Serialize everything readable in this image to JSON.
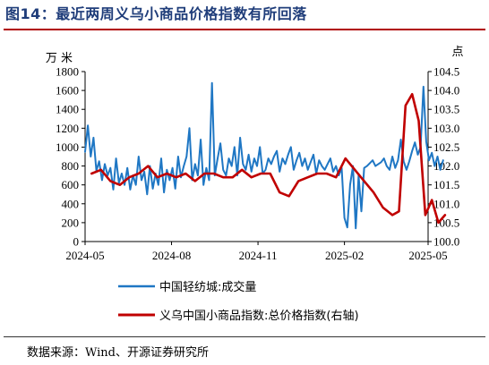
{
  "figure": {
    "title": "图14：最近两周义乌小商品价格指数有所回落",
    "source": "数据来源：Wind、开源证券研究所"
  },
  "colors": {
    "title": "#1f3d7a",
    "title_rule": "#b00000",
    "series_volume": "#1f77c4",
    "series_index": "#c00000"
  },
  "chart_data": {
    "type": "line",
    "left_axis": {
      "unit_label": "万米",
      "ylim": [
        0,
        1800
      ],
      "ticks": [
        "0",
        "200",
        "400",
        "600",
        "800",
        "1000",
        "1200",
        "1400",
        "1600",
        "1800"
      ]
    },
    "right_axis": {
      "unit_label": "点",
      "ylim": [
        100.0,
        104.5
      ],
      "ticks": [
        "100.0",
        "100.5",
        "101.0",
        "101.5",
        "102.0",
        "102.5",
        "103.0",
        "103.5",
        "104.0",
        "104.5"
      ]
    },
    "x_axis": {
      "ticks": [
        "2024-05",
        "2024-08",
        "2024-11",
        "2025-02",
        "2025-05"
      ]
    },
    "grid": false,
    "legend_placement": "bottom",
    "series": [
      {
        "name": "中国轻纺城:成交量",
        "axis": "left",
        "x": [
          "2024-05-01",
          "2024-05-04",
          "2024-05-07",
          "2024-05-10",
          "2024-05-13",
          "2024-05-16",
          "2024-05-19",
          "2024-05-22",
          "2024-05-25",
          "2024-05-28",
          "2024-05-31",
          "2024-06-03",
          "2024-06-06",
          "2024-06-09",
          "2024-06-12",
          "2024-06-15",
          "2024-06-18",
          "2024-06-21",
          "2024-06-24",
          "2024-06-27",
          "2024-06-30",
          "2024-07-03",
          "2024-07-06",
          "2024-07-09",
          "2024-07-12",
          "2024-07-15",
          "2024-07-18",
          "2024-07-21",
          "2024-07-24",
          "2024-07-27",
          "2024-07-30",
          "2024-08-02",
          "2024-08-05",
          "2024-08-08",
          "2024-08-11",
          "2024-08-14",
          "2024-08-17",
          "2024-08-20",
          "2024-08-23",
          "2024-08-26",
          "2024-08-29",
          "2024-09-01",
          "2024-09-04",
          "2024-09-07",
          "2024-09-10",
          "2024-09-13",
          "2024-09-16",
          "2024-09-19",
          "2024-09-22",
          "2024-09-25",
          "2024-09-28",
          "2024-10-01",
          "2024-10-04",
          "2024-10-07",
          "2024-10-10",
          "2024-10-13",
          "2024-10-16",
          "2024-10-19",
          "2024-10-22",
          "2024-10-25",
          "2024-10-28",
          "2024-10-31",
          "2024-11-03",
          "2024-11-06",
          "2024-11-09",
          "2024-11-12",
          "2024-11-15",
          "2024-11-18",
          "2024-11-21",
          "2024-11-24",
          "2024-11-27",
          "2024-11-30",
          "2024-12-03",
          "2024-12-06",
          "2024-12-09",
          "2024-12-12",
          "2024-12-15",
          "2024-12-18",
          "2024-12-21",
          "2024-12-24",
          "2024-12-27",
          "2024-12-30",
          "2025-01-02",
          "2025-01-05",
          "2025-01-08",
          "2025-01-11",
          "2025-01-14",
          "2025-01-17",
          "2025-01-20",
          "2025-01-23",
          "2025-01-26",
          "2025-01-29",
          "2025-02-01",
          "2025-02-04",
          "2025-02-07",
          "2025-02-10",
          "2025-02-13",
          "2025-02-16",
          "2025-02-19",
          "2025-02-22",
          "2025-02-25",
          "2025-02-28",
          "2025-03-03",
          "2025-03-06",
          "2025-03-09",
          "2025-03-12",
          "2025-03-15",
          "2025-03-18",
          "2025-03-21",
          "2025-03-24",
          "2025-03-27",
          "2025-03-30",
          "2025-04-02",
          "2025-04-05",
          "2025-04-08",
          "2025-04-11",
          "2025-04-14",
          "2025-04-17",
          "2025-04-20",
          "2025-04-23",
          "2025-04-26",
          "2025-04-29",
          "2025-05-02",
          "2025-05-05",
          "2025-05-08",
          "2025-05-11",
          "2025-05-14",
          "2025-05-17"
        ],
        "values": [
          950,
          1230,
          900,
          1100,
          750,
          850,
          650,
          820,
          700,
          780,
          550,
          880,
          620,
          720,
          600,
          780,
          550,
          700,
          600,
          900,
          650,
          740,
          500,
          800,
          560,
          720,
          600,
          880,
          520,
          760,
          650,
          780,
          560,
          900,
          680,
          800,
          900,
          1200,
          650,
          820,
          700,
          1080,
          600,
          780,
          650,
          1680,
          700,
          880,
          1040,
          760,
          700,
          880,
          800,
          1000,
          700,
          1100,
          820,
          760,
          920,
          740,
          880,
          800,
          1000,
          720,
          760,
          880,
          820,
          900,
          960,
          740,
          880,
          820,
          920,
          1000,
          760,
          860,
          940,
          800,
          880,
          760,
          840,
          920,
          720,
          860,
          800,
          760,
          820,
          880,
          740,
          800,
          700,
          780,
          250,
          150,
          600,
          800,
          140,
          700,
          320,
          780,
          800,
          830,
          860,
          800,
          820,
          840,
          880,
          800,
          760,
          900,
          780,
          860,
          1080,
          850,
          760,
          850,
          960,
          1050,
          920,
          1000,
          1640,
          1060,
          860,
          940,
          800,
          900,
          760,
          860
        ],
        "x_note": ""
      },
      {
        "name": "义乌中国小商品指数:总价格指数(右轴)",
        "axis": "right",
        "x": [
          "2024-05-08",
          "2024-05-18",
          "2024-05-28",
          "2024-06-07",
          "2024-06-17",
          "2024-06-27",
          "2024-07-07",
          "2024-07-17",
          "2024-07-27",
          "2024-08-06",
          "2024-08-16",
          "2024-08-26",
          "2024-09-05",
          "2024-09-15",
          "2024-09-25",
          "2024-10-05",
          "2024-10-15",
          "2024-10-25",
          "2024-11-04",
          "2024-11-14",
          "2024-11-24",
          "2024-12-04",
          "2024-12-14",
          "2024-12-24",
          "2025-01-03",
          "2025-01-13",
          "2025-01-23",
          "2025-02-02",
          "2025-02-12",
          "2025-02-22",
          "2025-03-04",
          "2025-03-14",
          "2025-03-24",
          "2025-03-31",
          "2025-04-07",
          "2025-04-14",
          "2025-04-21",
          "2025-04-28",
          "2025-05-05",
          "2025-05-12",
          "2025-05-19"
        ],
        "values": [
          101.8,
          101.9,
          101.6,
          101.5,
          101.7,
          101.8,
          102.0,
          101.7,
          101.8,
          101.7,
          101.8,
          101.6,
          101.8,
          101.8,
          101.7,
          101.7,
          101.9,
          101.7,
          101.8,
          101.8,
          101.3,
          101.2,
          101.6,
          101.7,
          101.8,
          101.8,
          101.7,
          102.2,
          101.9,
          101.6,
          101.3,
          100.9,
          100.7,
          100.8,
          103.6,
          103.9,
          103.2,
          100.7,
          101.1,
          100.5,
          100.7
        ]
      }
    ]
  }
}
